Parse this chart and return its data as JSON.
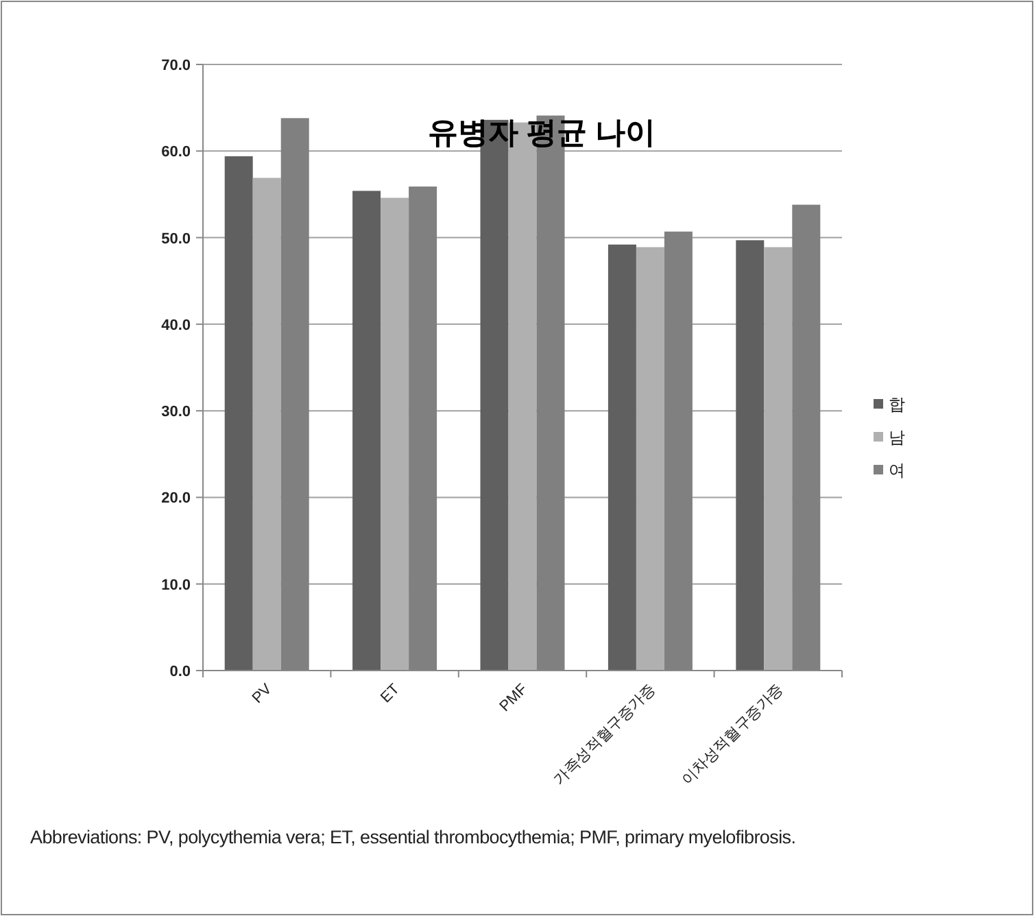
{
  "chart_data": {
    "type": "bar",
    "title": "유병자 평균 나이",
    "categories": [
      "PV",
      "ET",
      "PMF",
      "가족성적혈구증가증",
      "이차성적혈구증가증"
    ],
    "series": [
      {
        "name": "합",
        "color": "#606060",
        "values": [
          59.4,
          55.4,
          63.6,
          49.2,
          49.7
        ]
      },
      {
        "name": "남",
        "color": "#b0b0b0",
        "values": [
          56.9,
          54.6,
          63.3,
          48.9,
          48.9
        ]
      },
      {
        "name": "여",
        "color": "#808080",
        "values": [
          63.8,
          55.9,
          64.1,
          50.7,
          53.8
        ]
      }
    ],
    "ylim": [
      0,
      70
    ],
    "yticks": [
      {
        "value": 0,
        "label": "0.0"
      },
      {
        "value": 10,
        "label": "10.0"
      },
      {
        "value": 20,
        "label": "20.0"
      },
      {
        "value": 30,
        "label": "30.0"
      },
      {
        "value": 40,
        "label": "40.0"
      },
      {
        "value": 50,
        "label": "50.0"
      },
      {
        "value": 60,
        "label": "60.0"
      },
      {
        "value": 70,
        "label": "70.0"
      }
    ],
    "grid": "y",
    "legend": "right",
    "annotations": [
      "Abbreviations: PV, polycythemia vera; ET, essential thrombocythemia; PMF, primary myelofibrosis."
    ]
  }
}
